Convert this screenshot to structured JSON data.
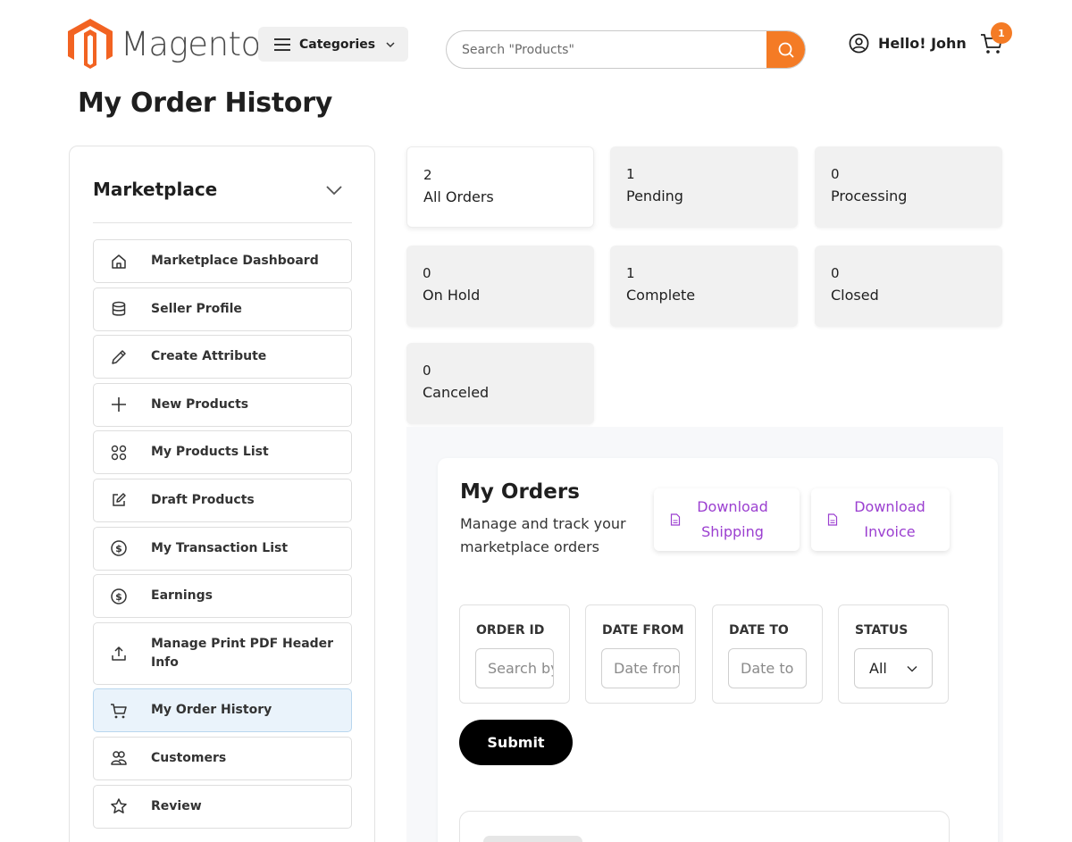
{
  "header": {
    "logo_text": "Magento",
    "logo_mark": "®",
    "categories_label": "Categories",
    "search_placeholder": "Search \"Products\"",
    "user_greeting": "Hello! John",
    "cart_count": "1",
    "accent_color": "#f47b25"
  },
  "page_title": "My Order History",
  "sidebar": {
    "title": "Marketplace",
    "items": [
      {
        "label": "Marketplace Dashboard",
        "icon": "home-icon"
      },
      {
        "label": "Seller Profile",
        "icon": "database-icon"
      },
      {
        "label": "Create Attribute",
        "icon": "pencil-icon"
      },
      {
        "label": "New Products",
        "icon": "plus-icon"
      },
      {
        "label": "My Products List",
        "icon": "grid-icon"
      },
      {
        "label": "Draft Products",
        "icon": "edit-icon"
      },
      {
        "label": "My Transaction List",
        "icon": "dollar-circle-icon"
      },
      {
        "label": "Earnings",
        "icon": "dollar-circle-icon"
      },
      {
        "label": "Manage Print PDF Header Info",
        "icon": "upload-icon"
      },
      {
        "label": "My Order History",
        "icon": "cart-icon",
        "active": true
      },
      {
        "label": "Customers",
        "icon": "users-icon"
      },
      {
        "label": "Review",
        "icon": "star-icon"
      }
    ]
  },
  "stats": [
    {
      "count": "2",
      "label": "All Orders"
    },
    {
      "count": "1",
      "label": "Pending"
    },
    {
      "count": "0",
      "label": "Processing"
    },
    {
      "count": "0",
      "label": "On Hold"
    },
    {
      "count": "1",
      "label": "Complete"
    },
    {
      "count": "0",
      "label": "Closed"
    },
    {
      "count": "0",
      "label": "Canceled"
    }
  ],
  "orders": {
    "title": "My Orders",
    "subtitle": "Manage and track your marketplace orders",
    "download_shipping": "Download Shipping",
    "download_invoice": "Download Invoice",
    "filters": {
      "order_id_label": "ORDER ID",
      "order_id_placeholder": "Search by Order ID",
      "date_from_label": "DATE FROM",
      "date_from_placeholder": "Date from",
      "date_to_label": "DATE TO",
      "date_to_placeholder": "Date to",
      "status_label": "STATUS",
      "status_value": "All"
    },
    "submit_label": "Submit"
  }
}
